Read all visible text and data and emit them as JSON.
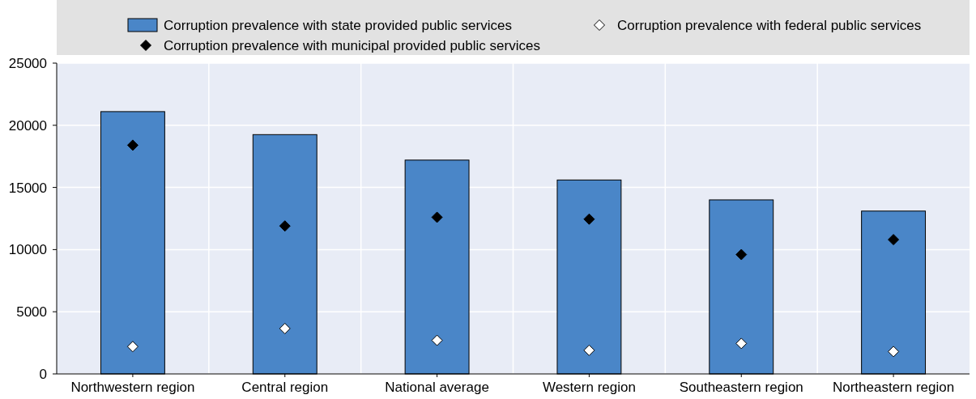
{
  "chart_data": {
    "type": "bar",
    "categories": [
      "Northwestern region",
      "Central region",
      "National average",
      "Western region",
      "Southeastern region",
      "Northeastern region"
    ],
    "series": [
      {
        "name": "Corruption prevalence with state provided public services",
        "color": "#4a86c8",
        "values": [
          21100,
          19250,
          17200,
          15600,
          14000,
          13100
        ]
      },
      {
        "name": "Corruption prevalence with federal public services",
        "type": "scatter",
        "color": "#ffffff",
        "values": [
          2200,
          3650,
          2700,
          1900,
          2450,
          1800
        ]
      },
      {
        "name": "Corruption prevalence with municipal provided public services",
        "type": "scatter",
        "color": "#000000",
        "values": [
          18400,
          11900,
          12600,
          12450,
          9600,
          10800
        ]
      }
    ],
    "ylim": [
      0,
      25000
    ],
    "yticks": [
      0,
      5000,
      10000,
      15000,
      20000,
      25000
    ],
    "grid": true,
    "legend": "top",
    "marker": "diamond"
  }
}
